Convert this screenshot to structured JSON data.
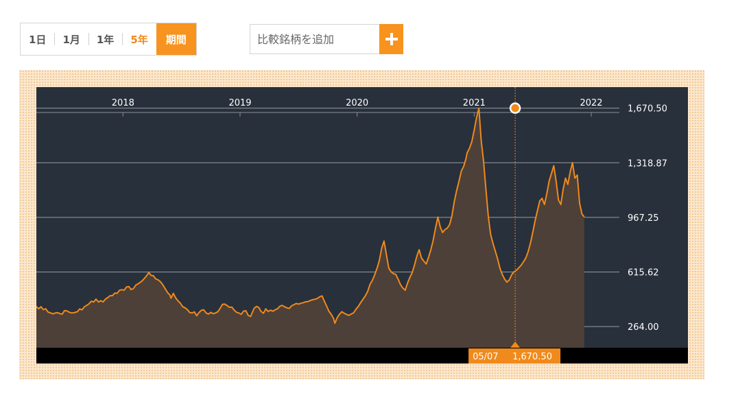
{
  "controls": {
    "periods": [
      "1日",
      "1月",
      "1年",
      "5年"
    ],
    "selected_period": "5年",
    "range_button": "期間",
    "compare_placeholder": "比較銘柄を追加",
    "accent_color": "#f7931e"
  },
  "chart_data": {
    "type": "area",
    "title": "",
    "xlabel": "",
    "ylabel": "",
    "x_ticks": [
      "2018",
      "2019",
      "2020",
      "2021",
      "2022"
    ],
    "y_ticks": [
      264.0,
      615.62,
      967.25,
      1318.87,
      1670.5
    ],
    "y_tick_labels": [
      "264.00",
      "615.62",
      "967.25",
      "1,318.87",
      "1,670.50"
    ],
    "ylim": [
      128,
      1806
    ],
    "xlim": [
      2017.26,
      2022.24
    ],
    "line_color": "#f08a1c",
    "grid": true,
    "crosshair": {
      "date_label": "05/07",
      "value_label": "1,670.50",
      "x": 2021.35,
      "y": 1670.5
    },
    "series": [
      {
        "values": [
          [
            2017.26,
            393
          ],
          [
            2017.28,
            379
          ],
          [
            2017.3,
            392
          ],
          [
            2017.32,
            373
          ],
          [
            2017.34,
            379
          ],
          [
            2017.36,
            357
          ],
          [
            2017.38,
            353
          ],
          [
            2017.4,
            346
          ],
          [
            2017.42,
            351
          ],
          [
            2017.44,
            354
          ],
          [
            2017.46,
            348
          ],
          [
            2017.48,
            344
          ],
          [
            2017.5,
            367
          ],
          [
            2017.52,
            365
          ],
          [
            2017.54,
            357
          ],
          [
            2017.56,
            352
          ],
          [
            2017.58,
            353
          ],
          [
            2017.61,
            360
          ],
          [
            2017.63,
            378
          ],
          [
            2017.65,
            372
          ],
          [
            2017.67,
            392
          ],
          [
            2017.69,
            401
          ],
          [
            2017.71,
            411
          ],
          [
            2017.73,
            428
          ],
          [
            2017.75,
            422
          ],
          [
            2017.77,
            441
          ],
          [
            2017.79,
            422
          ],
          [
            2017.81,
            431
          ],
          [
            2017.83,
            423
          ],
          [
            2017.85,
            441
          ],
          [
            2017.87,
            451
          ],
          [
            2017.89,
            463
          ],
          [
            2017.91,
            463
          ],
          [
            2017.93,
            480
          ],
          [
            2017.95,
            478
          ],
          [
            2017.97,
            498
          ],
          [
            2017.99,
            502
          ],
          [
            2018.01,
            498
          ],
          [
            2018.03,
            519
          ],
          [
            2018.05,
            522
          ],
          [
            2018.07,
            502
          ],
          [
            2018.09,
            510
          ],
          [
            2018.11,
            532
          ],
          [
            2018.13,
            540
          ],
          [
            2018.16,
            556
          ],
          [
            2018.18,
            572
          ],
          [
            2018.2,
            590
          ],
          [
            2018.22,
            612
          ],
          [
            2018.24,
            594
          ],
          [
            2018.26,
            591
          ],
          [
            2018.28,
            571
          ],
          [
            2018.3,
            565
          ],
          [
            2018.32,
            553
          ],
          [
            2018.34,
            534
          ],
          [
            2018.36,
            508
          ],
          [
            2018.38,
            484
          ],
          [
            2018.4,
            468
          ],
          [
            2018.41,
            447
          ],
          [
            2018.43,
            478
          ],
          [
            2018.45,
            449
          ],
          [
            2018.47,
            430
          ],
          [
            2018.49,
            415
          ],
          [
            2018.51,
            392
          ],
          [
            2018.53,
            385
          ],
          [
            2018.55,
            373
          ],
          [
            2018.57,
            355
          ],
          [
            2018.59,
            352
          ],
          [
            2018.61,
            359
          ],
          [
            2018.63,
            334
          ],
          [
            2018.65,
            355
          ],
          [
            2018.67,
            369
          ],
          [
            2018.69,
            372
          ],
          [
            2018.71,
            352
          ],
          [
            2018.73,
            345
          ],
          [
            2018.75,
            356
          ],
          [
            2018.77,
            347
          ],
          [
            2018.79,
            352
          ],
          [
            2018.81,
            360
          ],
          [
            2018.83,
            382
          ],
          [
            2018.85,
            408
          ],
          [
            2018.87,
            409
          ],
          [
            2018.89,
            399
          ],
          [
            2018.91,
            388
          ],
          [
            2018.93,
            390
          ],
          [
            2018.95,
            370
          ],
          [
            2018.97,
            356
          ],
          [
            2018.99,
            352
          ],
          [
            2019.01,
            343
          ],
          [
            2019.03,
            364
          ],
          [
            2019.05,
            366
          ],
          [
            2019.07,
            336
          ],
          [
            2019.09,
            329
          ],
          [
            2019.1,
            347
          ],
          [
            2019.12,
            382
          ],
          [
            2019.14,
            394
          ],
          [
            2019.16,
            387
          ],
          [
            2019.18,
            361
          ],
          [
            2019.2,
            350
          ],
          [
            2019.22,
            378
          ],
          [
            2019.24,
            361
          ],
          [
            2019.26,
            370
          ],
          [
            2019.28,
            363
          ],
          [
            2019.3,
            372
          ],
          [
            2019.32,
            379
          ],
          [
            2019.34,
            395
          ],
          [
            2019.36,
            401
          ],
          [
            2019.38,
            392
          ],
          [
            2019.4,
            385
          ],
          [
            2019.42,
            381
          ],
          [
            2019.44,
            398
          ],
          [
            2019.46,
            405
          ],
          [
            2019.48,
            413
          ],
          [
            2019.5,
            409
          ],
          [
            2019.52,
            414
          ],
          [
            2019.54,
            418
          ],
          [
            2019.56,
            424
          ],
          [
            2019.58,
            425
          ],
          [
            2019.6,
            432
          ],
          [
            2019.62,
            437
          ],
          [
            2019.64,
            440
          ],
          [
            2019.66,
            445
          ],
          [
            2019.68,
            456
          ],
          [
            2019.7,
            462
          ],
          [
            2019.72,
            428
          ],
          [
            2019.74,
            395
          ],
          [
            2019.76,
            362
          ],
          [
            2019.78,
            342
          ],
          [
            2019.8,
            315
          ],
          [
            2019.81,
            285
          ],
          [
            2019.83,
            322
          ],
          [
            2019.85,
            345
          ],
          [
            2019.87,
            360
          ],
          [
            2019.89,
            350
          ],
          [
            2019.91,
            342
          ],
          [
            2019.93,
            337
          ],
          [
            2019.95,
            345
          ],
          [
            2019.97,
            353
          ],
          [
            2019.99,
            376
          ],
          [
            2020.01,
            394
          ],
          [
            2020.03,
            418
          ],
          [
            2020.05,
            440
          ],
          [
            2020.07,
            462
          ],
          [
            2020.09,
            490
          ],
          [
            2020.11,
            535
          ],
          [
            2020.13,
            562
          ],
          [
            2020.15,
            598
          ],
          [
            2020.17,
            640
          ],
          [
            2020.19,
            690
          ],
          [
            2020.21,
            769
          ],
          [
            2020.23,
            815
          ],
          [
            2020.25,
            729
          ],
          [
            2020.27,
            641
          ],
          [
            2020.29,
            617
          ],
          [
            2020.31,
            605
          ],
          [
            2020.33,
            600
          ],
          [
            2020.35,
            570
          ],
          [
            2020.37,
            535
          ],
          [
            2020.39,
            513
          ],
          [
            2020.41,
            498
          ],
          [
            2020.43,
            543
          ],
          [
            2020.45,
            580
          ],
          [
            2020.47,
            611
          ],
          [
            2020.49,
            660
          ],
          [
            2020.51,
            717
          ],
          [
            2020.53,
            759
          ],
          [
            2020.55,
            706
          ],
          [
            2020.57,
            685
          ],
          [
            2020.59,
            667
          ],
          [
            2020.61,
            711
          ],
          [
            2020.63,
            760
          ],
          [
            2020.65,
            821
          ],
          [
            2020.67,
            900
          ],
          [
            2020.69,
            969
          ],
          [
            2020.71,
            905
          ],
          [
            2020.73,
            870
          ],
          [
            2020.75,
            889
          ],
          [
            2020.77,
            898
          ],
          [
            2020.79,
            921
          ],
          [
            2020.81,
            977
          ],
          [
            2020.83,
            1069
          ],
          [
            2020.85,
            1141
          ],
          [
            2020.87,
            1200
          ],
          [
            2020.89,
            1266
          ],
          [
            2020.91,
            1295
          ],
          [
            2020.93,
            1346
          ],
          [
            2020.94,
            1384
          ],
          [
            2020.96,
            1412
          ],
          [
            2020.98,
            1455
          ],
          [
            2021.0,
            1530
          ],
          [
            2021.02,
            1610
          ],
          [
            2021.04,
            1670.5
          ],
          [
            2021.06,
            1460
          ],
          [
            2021.08,
            1330
          ],
          [
            2021.1,
            1150
          ],
          [
            2021.12,
            980
          ],
          [
            2021.14,
            860
          ],
          [
            2021.16,
            800
          ],
          [
            2021.18,
            750
          ],
          [
            2021.2,
            700
          ],
          [
            2021.22,
            640
          ],
          [
            2021.24,
            600
          ],
          [
            2021.26,
            570
          ],
          [
            2021.28,
            550
          ],
          [
            2021.3,
            565
          ],
          [
            2021.32,
            598
          ],
          [
            2021.34,
            617
          ],
          [
            2021.36,
            626
          ],
          [
            2021.38,
            642
          ],
          [
            2021.4,
            658
          ],
          [
            2021.42,
            680
          ],
          [
            2021.44,
            705
          ],
          [
            2021.46,
            745
          ],
          [
            2021.48,
            800
          ],
          [
            2021.5,
            870
          ],
          [
            2021.52,
            945
          ],
          [
            2021.54,
            1010
          ],
          [
            2021.56,
            1073
          ],
          [
            2021.58,
            1090
          ],
          [
            2021.6,
            1050
          ],
          [
            2021.62,
            1120
          ],
          [
            2021.64,
            1200
          ],
          [
            2021.66,
            1250
          ],
          [
            2021.68,
            1300
          ],
          [
            2021.7,
            1200
          ],
          [
            2021.72,
            1080
          ],
          [
            2021.74,
            1050
          ],
          [
            2021.76,
            1150
          ],
          [
            2021.78,
            1220
          ],
          [
            2021.8,
            1180
          ],
          [
            2021.82,
            1260
          ],
          [
            2021.84,
            1320
          ],
          [
            2021.86,
            1220
          ],
          [
            2021.88,
            1240
          ],
          [
            2021.9,
            1060
          ],
          [
            2021.92,
            990
          ],
          [
            2021.94,
            970
          ]
        ]
      }
    ]
  }
}
